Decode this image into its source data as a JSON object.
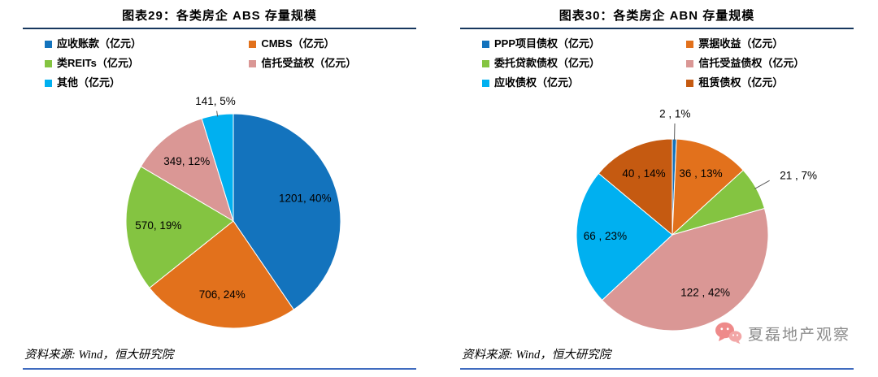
{
  "watermark": {
    "text": "夏磊地产观察"
  },
  "chart_data": [
    {
      "type": "pie",
      "title": "图表29：各类房企 ABS 存量规模",
      "source": "资料来源: Wind，恒大研究院",
      "unit": "亿元",
      "legend_position": "top",
      "outside_label_offset": 16,
      "series": [
        {
          "name": "应收账款（亿元）",
          "value": 1201,
          "pct": "40%",
          "label": "1201, 40%",
          "color": "#1373BD",
          "label_inside": true
        },
        {
          "name": "CMBS（亿元）",
          "value": 706,
          "pct": "24%",
          "label": "706, 24%",
          "color": "#E2711C",
          "label_inside": true
        },
        {
          "name": "类REITs（亿元）",
          "value": 570,
          "pct": "19%",
          "label": "570, 19%",
          "color": "#84C441",
          "label_inside": true
        },
        {
          "name": "信托受益权（亿元）",
          "value": 349,
          "pct": "12%",
          "label": "349, 12%",
          "color": "#DA9795",
          "label_inside": true
        },
        {
          "name": "其他（亿元）",
          "value": 141,
          "pct": "5%",
          "label": "141, 5%",
          "color": "#00B0F0",
          "label_inside": false
        }
      ]
    },
    {
      "type": "pie",
      "title": "图表30：各类房企 ABN 存量规模",
      "source": "资料来源: Wind，恒大研究院",
      "unit": "亿元",
      "legend_position": "top",
      "outside_label_offset": 30,
      "series": [
        {
          "name": "PPP项目债权（亿元）",
          "value": 2,
          "pct": "1%",
          "label": "2 , 1%",
          "color": "#1373BD",
          "label_inside": false
        },
        {
          "name": "票据收益（亿元）",
          "value": 36,
          "pct": "13%",
          "label": "36 , 13%",
          "color": "#E2711C",
          "label_inside": true
        },
        {
          "name": "委托贷款债权（亿元）",
          "value": 21,
          "pct": "7%",
          "label": "21 , 7%",
          "color": "#84C441",
          "label_inside": false
        },
        {
          "name": "信托受益债权（亿元）",
          "value": 122,
          "pct": "42%",
          "label": "122 , 42%",
          "color": "#DA9795",
          "label_inside": true
        },
        {
          "name": "应收债权（亿元）",
          "value": 66,
          "pct": "23%",
          "label": "66 , 23%",
          "color": "#00B0F0",
          "label_inside": true
        },
        {
          "name": "租赁债权（亿元）",
          "value": 40,
          "pct": "14%",
          "label": "40 , 14%",
          "color": "#C55A11",
          "label_inside": true
        }
      ]
    }
  ]
}
